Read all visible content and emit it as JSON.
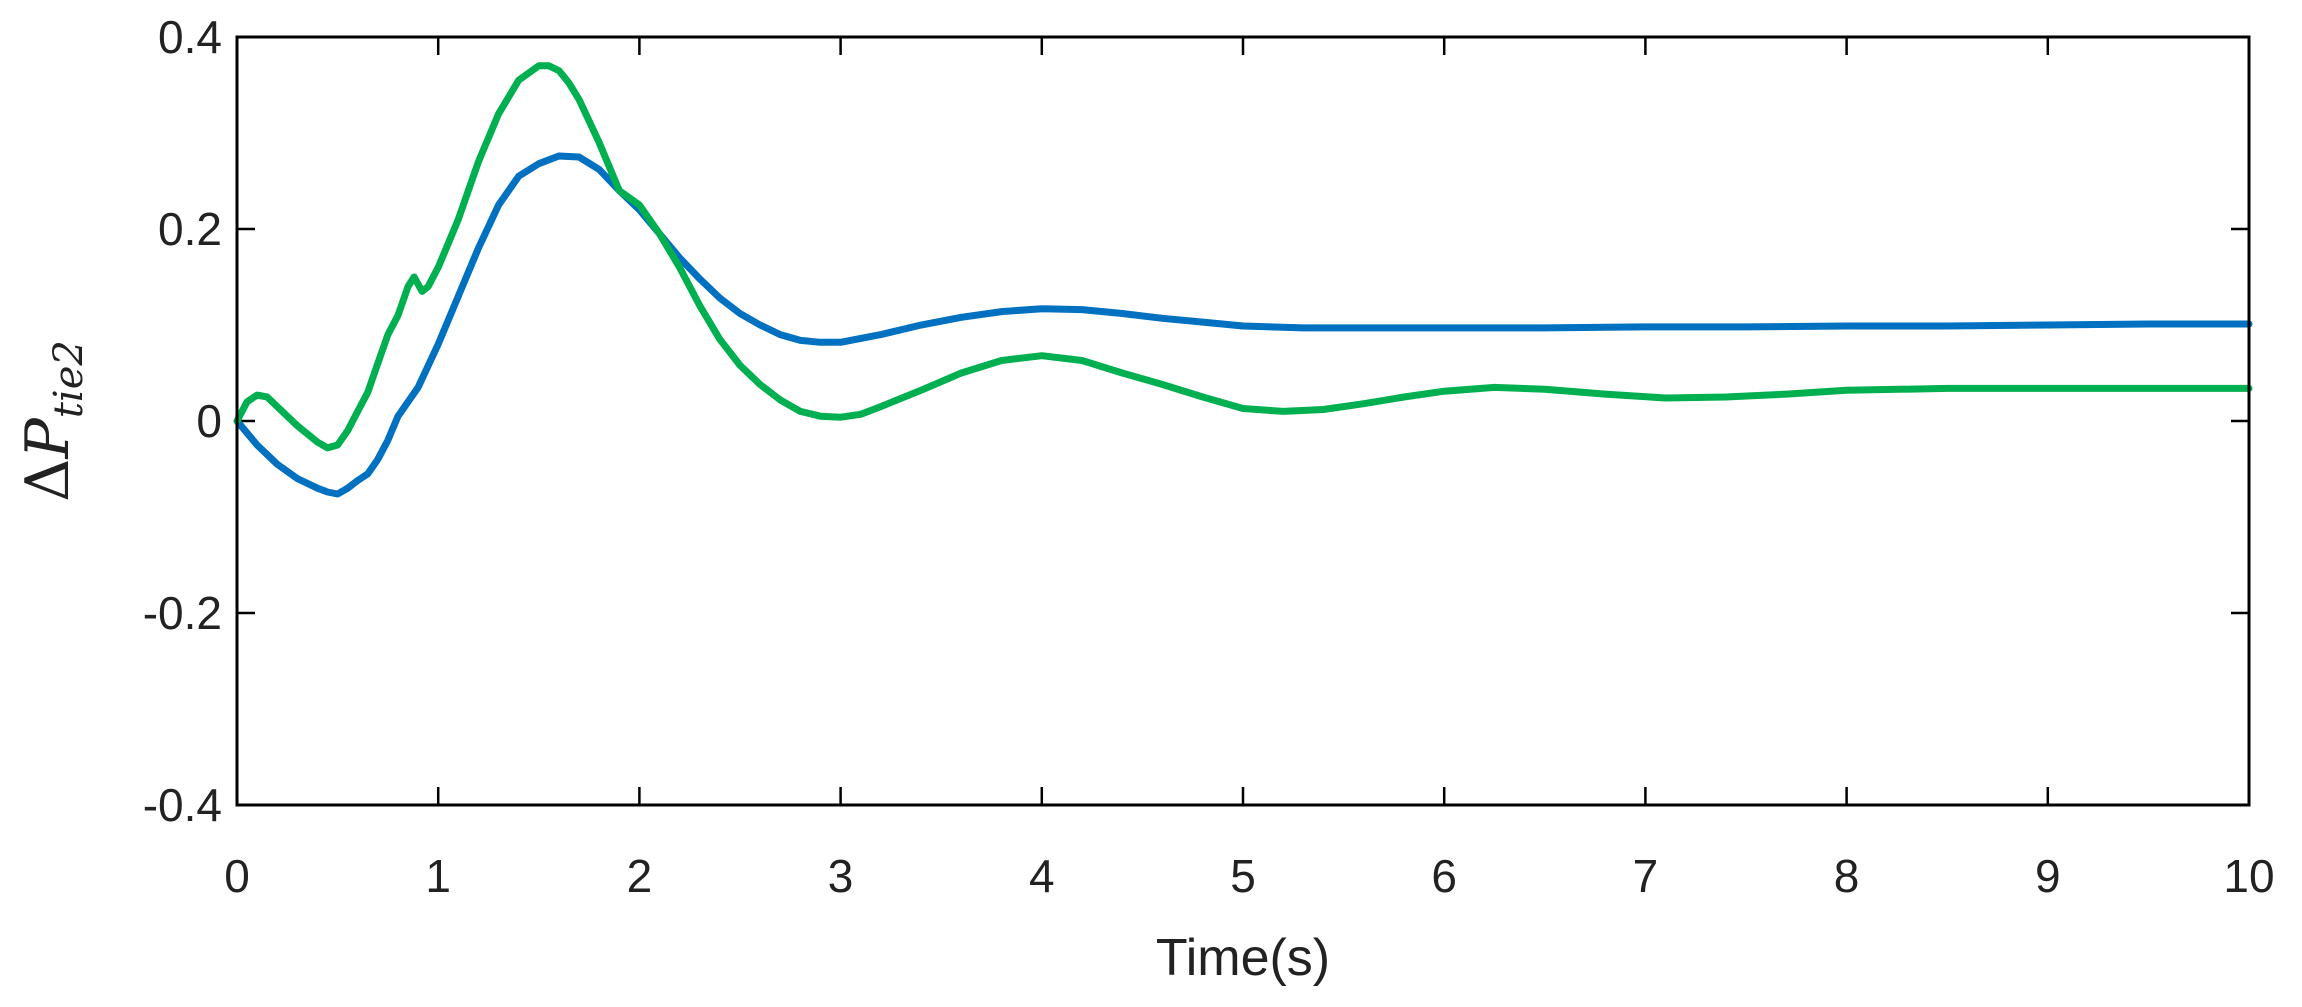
{
  "chart_data": {
    "type": "line",
    "title": "",
    "xlabel": "Time(s)",
    "ylabel": {
      "symbol": "Δ",
      "main": "P",
      "sub": "tie2"
    },
    "xlim": [
      0,
      10
    ],
    "ylim": [
      -0.4,
      0.4
    ],
    "xticks": [
      0,
      1,
      2,
      3,
      4,
      5,
      6,
      7,
      8,
      9,
      10
    ],
    "xtick_labels": [
      "0",
      "1",
      "2",
      "3",
      "4",
      "5",
      "6",
      "7",
      "8",
      "9",
      "10"
    ],
    "yticks": [
      -0.4,
      -0.2,
      0,
      0.2,
      0.4
    ],
    "ytick_labels": [
      "-0.4",
      "-0.2",
      "0",
      "0.2",
      "0.4"
    ],
    "grid": false,
    "legend": "none",
    "series": [
      {
        "color": "#0070c0",
        "x": [
          0,
          0.1,
          0.2,
          0.3,
          0.4,
          0.45,
          0.5,
          0.55,
          0.6,
          0.65,
          0.7,
          0.75,
          0.8,
          0.9,
          1.0,
          1.1,
          1.2,
          1.3,
          1.4,
          1.5,
          1.6,
          1.7,
          1.8,
          1.9,
          2.0,
          2.1,
          2.2,
          2.3,
          2.4,
          2.5,
          2.6,
          2.7,
          2.8,
          2.9,
          3.0,
          3.2,
          3.4,
          3.6,
          3.8,
          4.0,
          4.2,
          4.4,
          4.6,
          4.8,
          5.0,
          5.3,
          5.6,
          6.0,
          6.5,
          7.0,
          7.5,
          8.0,
          8.5,
          9.0,
          9.5,
          10.0
        ],
        "y": [
          0,
          -0.025,
          -0.045,
          -0.06,
          -0.07,
          -0.074,
          -0.076,
          -0.07,
          -0.062,
          -0.055,
          -0.04,
          -0.02,
          0.005,
          0.035,
          0.08,
          0.13,
          0.18,
          0.225,
          0.255,
          0.268,
          0.276,
          0.275,
          0.262,
          0.24,
          0.22,
          0.195,
          0.17,
          0.148,
          0.128,
          0.112,
          0.1,
          0.09,
          0.084,
          0.082,
          0.082,
          0.09,
          0.1,
          0.108,
          0.114,
          0.117,
          0.116,
          0.112,
          0.107,
          0.103,
          0.099,
          0.097,
          0.097,
          0.097,
          0.097,
          0.098,
          0.098,
          0.099,
          0.099,
          0.1,
          0.101,
          0.101
        ]
      },
      {
        "color": "#00b050",
        "x": [
          0,
          0.05,
          0.1,
          0.15,
          0.2,
          0.3,
          0.4,
          0.45,
          0.5,
          0.55,
          0.6,
          0.65,
          0.7,
          0.75,
          0.8,
          0.85,
          0.88,
          0.92,
          0.95,
          1.0,
          1.05,
          1.1,
          1.2,
          1.3,
          1.4,
          1.5,
          1.55,
          1.6,
          1.65,
          1.7,
          1.8,
          1.9,
          2.0,
          2.1,
          2.2,
          2.3,
          2.4,
          2.5,
          2.6,
          2.7,
          2.8,
          2.9,
          3.0,
          3.1,
          3.2,
          3.4,
          3.6,
          3.8,
          4.0,
          4.2,
          4.4,
          4.6,
          4.8,
          5.0,
          5.2,
          5.4,
          5.6,
          5.8,
          6.0,
          6.25,
          6.5,
          6.8,
          7.1,
          7.4,
          7.7,
          8.0,
          8.5,
          9.0,
          9.5,
          10.0
        ],
        "y": [
          0,
          0.02,
          0.027,
          0.025,
          0.015,
          -0.005,
          -0.022,
          -0.028,
          -0.025,
          -0.01,
          0.01,
          0.03,
          0.06,
          0.09,
          0.11,
          0.14,
          0.15,
          0.135,
          0.14,
          0.16,
          0.185,
          0.21,
          0.27,
          0.32,
          0.355,
          0.37,
          0.37,
          0.365,
          0.352,
          0.335,
          0.29,
          0.24,
          0.225,
          0.195,
          0.16,
          0.12,
          0.085,
          0.058,
          0.038,
          0.022,
          0.01,
          0.005,
          0.004,
          0.007,
          0.015,
          0.032,
          0.05,
          0.063,
          0.068,
          0.063,
          0.05,
          0.038,
          0.025,
          0.013,
          0.01,
          0.012,
          0.018,
          0.025,
          0.031,
          0.035,
          0.033,
          0.028,
          0.024,
          0.025,
          0.028,
          0.032,
          0.034,
          0.034,
          0.034,
          0.034
        ]
      }
    ]
  }
}
